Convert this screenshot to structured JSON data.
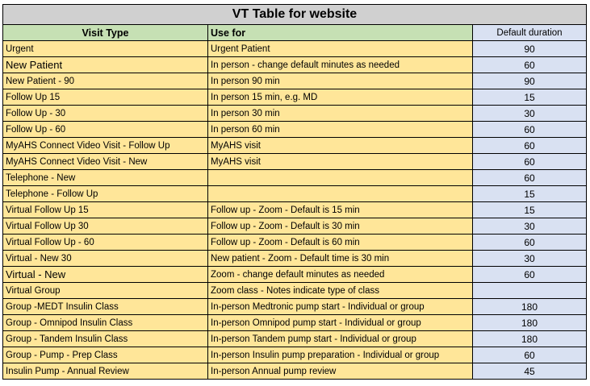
{
  "title": "VT Table for website",
  "headers": {
    "visit_type": "Visit Type",
    "use_for": "Use for",
    "duration": "Default duration"
  },
  "rows": [
    {
      "type": "Urgent",
      "use": "Urgent Patient",
      "duration": "90"
    },
    {
      "type": "New Patient",
      "use": "In person - change default minutes as needed",
      "duration": "60"
    },
    {
      "type": "New Patient - 90",
      "use": "In person 90 min",
      "duration": "90"
    },
    {
      "type": "Follow Up 15",
      "use": "In person 15 min, e.g. MD",
      "duration": "15"
    },
    {
      "type": "Follow Up - 30",
      "use": "In person 30 min",
      "duration": "30"
    },
    {
      "type": "Follow Up - 60",
      "use": "In person 60 min",
      "duration": "60"
    },
    {
      "type": "MyAHS Connect Video Visit - Follow Up",
      "use": "MyAHS visit",
      "duration": "60"
    },
    {
      "type": "MyAHS Connect Video Visit - New",
      "use": "MyAHS visit",
      "duration": "60"
    },
    {
      "type": "Telephone - New",
      "use": "",
      "duration": "60"
    },
    {
      "type": "Telephone - Follow Up",
      "use": "",
      "duration": "15"
    },
    {
      "type": "Virtual Follow Up 15",
      "use": "Follow up - Zoom - Default is 15 min",
      "duration": "15"
    },
    {
      "type": "Virtual Follow Up 30",
      "use": "Follow up - Zoom - Default is 30 min",
      "duration": "30"
    },
    {
      "type": "Virtual Follow Up - 60",
      "use": "Follow up - Zoom - Default is 60 min",
      "duration": "60"
    },
    {
      "type": "Virtual - New 30",
      "use": "New patient - Zoom - Default time is 30 min",
      "duration": "30"
    },
    {
      "type": "Virtual - New",
      "use": "Zoom - change default minutes as needed",
      "duration": "60"
    },
    {
      "type": "Virtual Group",
      "use": "Zoom class - Notes indicate type of class",
      "duration": ""
    },
    {
      "type": "Group -MEDT Insulin Class",
      "use": "In-person Medtronic pump start - Individual or group",
      "duration": "180"
    },
    {
      "type": "Group - Omnipod Insulin Class",
      "use": "In-person Omnipod pump start - Individual or group",
      "duration": "180"
    },
    {
      "type": "Group - Tandem Insulin Class",
      "use": "In-person Tandem pump start - Individual or group",
      "duration": "180"
    },
    {
      "type": "Group - Pump - Prep Class",
      "use": "In-person Insulin pump preparation - Individual or group",
      "duration": "60"
    },
    {
      "type": "Insulin Pump - Annual Review",
      "use": "In-person Annual pump review",
      "duration": "45"
    }
  ],
  "colors": {
    "title_bg": "#d0d0d0",
    "header_bg": "#c6e0b4",
    "text_cells_bg": "#ffe699",
    "duration_bg": "#d9e1f2"
  }
}
